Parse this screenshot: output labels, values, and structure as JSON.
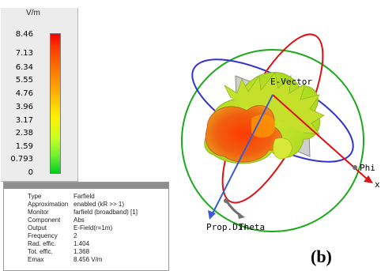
{
  "colorbar": {
    "unit": "V/m",
    "ticks": [
      "8.46",
      "7.13",
      "6.34",
      "5.55",
      "4.76",
      "3.96",
      "3.17",
      "2.38",
      "1.59",
      "0.793",
      "0"
    ],
    "gradient": [
      "#ff0000",
      "#ff7300",
      "#fff000",
      "#6cf030",
      "#00d020"
    ]
  },
  "info": {
    "rows": [
      {
        "key": "Type",
        "value": "Farfield"
      },
      {
        "key": "Approximation",
        "value": "enabled (kR >> 1)"
      },
      {
        "key": "Monitor",
        "value": "farfield (broadband) [1]"
      },
      {
        "key": "Component",
        "value": "Abs"
      },
      {
        "key": "Output",
        "value": "E-Field(r=1m)"
      },
      {
        "key": "Frequency",
        "value": "2"
      },
      {
        "key": "Rad. effic.",
        "value": "1.404"
      },
      {
        "key": "Tot. effic.",
        "value": "1.368"
      },
      {
        "key": "Emax",
        "value": "8.456 V/m"
      }
    ]
  },
  "plot": {
    "labels": {
      "evector": "E-Vector",
      "phi": "Phi",
      "x": "x",
      "prop": "Prop.Dir",
      "theta": "Theta"
    },
    "colors": {
      "sphere_green": "#1aaa1a",
      "ellipse_blue": "#3232d2",
      "ellipse_red": "#dd1111",
      "prop_arrow": "#3a5ad0",
      "theta_arrow": "#707070"
    }
  },
  "figure_label": "(b)"
}
